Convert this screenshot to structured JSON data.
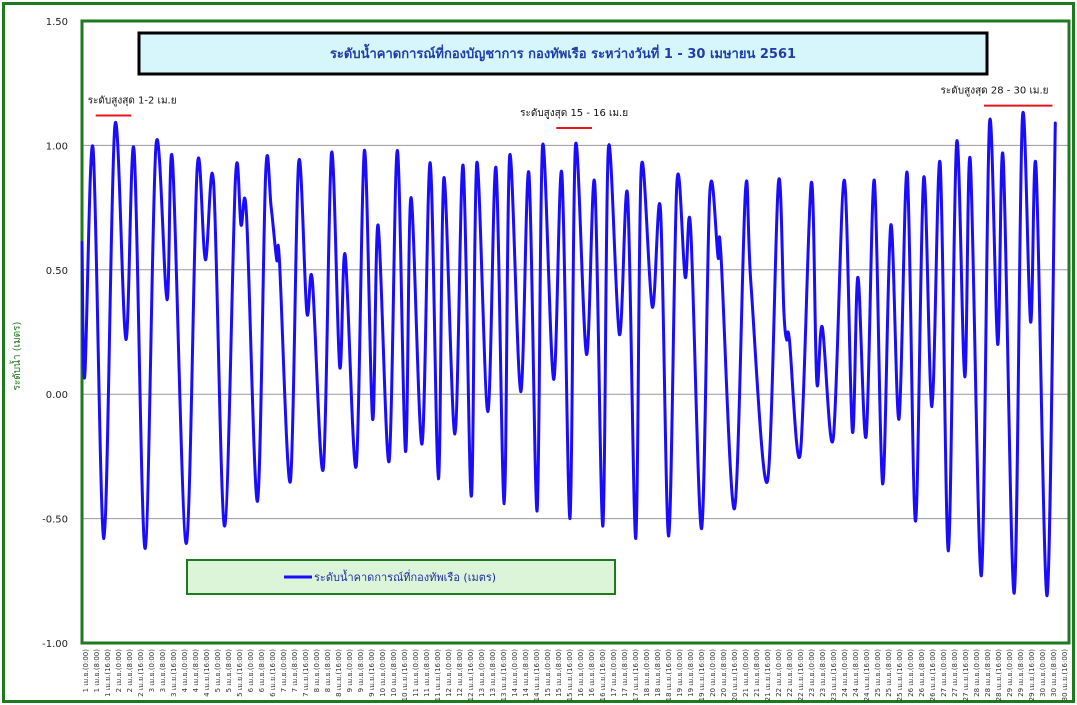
{
  "chart_data": {
    "type": "line",
    "title": "ระดับน้ำคาดการณ์ที่กองบัญชาการ กองทัพเรือ  ระหว่างวันที่ 1 - 30 เมษายน 2561",
    "ylabel": "ระดับน้ำ (เมตร)",
    "ylim": [
      -1.0,
      1.5
    ],
    "yticks": [
      "1.50",
      "1.00",
      "0.50",
      "0.00",
      "-0.50",
      "-1.00"
    ],
    "grid": true,
    "legend": {
      "label": "ระดับน้ำคาดการณ์ที่กองทัพเรือ (เมตร)",
      "position": "bottom-left"
    },
    "x_tick_labels": [
      "1 เม.ย.(0:00)",
      "1 เม.ย.(8:00)",
      "1 เม.ย.(16:00)",
      "2 เม.ย.(0:00)",
      "2 เม.ย.(8:00)",
      "2 เม.ย.(16:00)",
      "3 เม.ย.(0:00)",
      "3 เม.ย.(8:00)",
      "3 เม.ย.(16:00)",
      "4 เม.ย.(0:00)",
      "4 เม.ย.(8:00)",
      "4 เม.ย.(16:00)",
      "5 เม.ย.(0:00)",
      "5 เม.ย.(8:00)",
      "5 เม.ย.(16:00)",
      "6 เม.ย.(0:00)",
      "6 เม.ย.(8:00)",
      "6 เม.ย.(16:00)",
      "7 เม.ย.(0:00)",
      "7 เม.ย.(8:00)",
      "7 เม.ย.(16:00)",
      "8 เม.ย.(0:00)",
      "8 เม.ย.(8:00)",
      "8 เม.ย.(16:00)",
      "9 เม.ย.(0:00)",
      "9 เม.ย.(8:00)",
      "9 เม.ย.(16:00)",
      "10 เม.ย.(0:00)",
      "10 เม.ย.(8:00)",
      "10 เม.ย.(16:00)",
      "11 เม.ย.(0:00)",
      "11 เม.ย.(8:00)",
      "11 เม.ย.(16:00)",
      "12 เม.ย.(0:00)",
      "12 เม.ย.(8:00)",
      "12 เม.ย.(16:00)",
      "13 เม.ย.(0:00)",
      "13 เม.ย.(8:00)",
      "13 เม.ย.(16:00)",
      "14 เม.ย.(0:00)",
      "14 เม.ย.(8:00)",
      "14 เม.ย.(16:00)",
      "15 เม.ย.(0:00)",
      "15 เม.ย.(8:00)",
      "15 เม.ย.(16:00)",
      "16 เม.ย.(0:00)",
      "16 เม.ย.(8:00)",
      "16 เม.ย.(16:00)",
      "17 เม.ย.(0:00)",
      "17 เม.ย.(8:00)",
      "17 เม.ย.(16:00)",
      "18 เม.ย.(0:00)",
      "18 เม.ย.(8:00)",
      "18 เม.ย.(16:00)",
      "19 เม.ย.(0:00)",
      "19 เม.ย.(8:00)",
      "19 เม.ย.(16:00)",
      "20 เม.ย.(0:00)",
      "20 เม.ย.(8:00)",
      "20 เม.ย.(16:00)",
      "21 เม.ย.(0:00)",
      "21 เม.ย.(8:00)",
      "21 เม.ย.(16:00)",
      "22 เม.ย.(0:00)",
      "22 เม.ย.(8:00)",
      "22 เม.ย.(16:00)",
      "23 เม.ย.(0:00)",
      "23 เม.ย.(8:00)",
      "23 เม.ย.(16:00)",
      "24 เม.ย.(0:00)",
      "24 เม.ย.(8:00)",
      "24 เม.ย.(16:00)",
      "25 เม.ย.(0:00)",
      "25 เม.ย.(8:00)",
      "25 เม.ย.(16:00)",
      "26 เม.ย.(0:00)",
      "26 เม.ย.(8:00)",
      "26 เม.ย.(16:00)",
      "27 เม.ย.(0:00)",
      "27 เม.ย.(8:00)",
      "27 เม.ย.(16:00)",
      "28 เม.ย.(0:00)",
      "28 เม.ย.(8:00)",
      "28 เม.ย.(16:00)",
      "29 เม.ย.(0:00)",
      "29 เม.ย.(8:00)",
      "29 เม.ย.(16:00)",
      "30 เม.ย.(0:00)",
      "30 เม.ย.(8:00)",
      "30 เม.ย.(16:00)"
    ],
    "annotations": [
      {
        "label": "ระดับสูงสุด 1-2 เม.ย",
        "day_start": 1,
        "day_end": 2,
        "level": 1.12
      },
      {
        "label": "ระดับสูงสุด 15 - 16 เม.ย",
        "day_start": 15,
        "day_end": 16,
        "level": 1.07
      },
      {
        "label": "ระดับสูงสุด 28 - 30 เม.ย",
        "day_start": 28,
        "day_end": 30,
        "level": 1.16
      }
    ],
    "series": [
      {
        "name": "ระดับน้ำคาดการณ์ที่กองทัพเรือ (เมตร)",
        "color": "#1a0dff",
        "time_unit": "hours from 1 เม.ย.(0:00)",
        "points": [
          [
            0,
            0.61
          ],
          [
            1,
            0.07
          ],
          [
            4,
            0.99
          ],
          [
            8,
            -0.58
          ],
          [
            12,
            1.08
          ],
          [
            16,
            0.22
          ],
          [
            19,
            0.98
          ],
          [
            23,
            -0.62
          ],
          [
            27,
            1.0
          ],
          [
            31,
            0.38
          ],
          [
            33,
            0.94
          ],
          [
            38,
            -0.6
          ],
          [
            42,
            0.91
          ],
          [
            45,
            0.54
          ],
          [
            48,
            0.85
          ],
          [
            52,
            -0.53
          ],
          [
            56,
            0.87
          ],
          [
            58,
            0.68
          ],
          [
            60,
            0.72
          ],
          [
            64,
            -0.43
          ],
          [
            67,
            0.89
          ],
          [
            69,
            0.75
          ],
          [
            71,
            0.54
          ],
          [
            72,
            0.54
          ],
          [
            76,
            -0.35
          ],
          [
            79,
            0.93
          ],
          [
            82,
            0.33
          ],
          [
            84,
            0.46
          ],
          [
            88,
            -0.3
          ],
          [
            91,
            0.97
          ],
          [
            94,
            0.11
          ],
          [
            96,
            0.56
          ],
          [
            100,
            -0.29
          ],
          [
            103,
            0.98
          ],
          [
            106,
            -0.1
          ],
          [
            108,
            0.68
          ],
          [
            112,
            -0.27
          ],
          [
            115,
            0.98
          ],
          [
            118,
            -0.23
          ],
          [
            120,
            0.79
          ],
          [
            124,
            -0.2
          ],
          [
            127,
            0.93
          ],
          [
            130,
            -0.34
          ],
          [
            132,
            0.87
          ],
          [
            136,
            -0.16
          ],
          [
            139,
            0.92
          ],
          [
            142,
            -0.41
          ],
          [
            144,
            0.93
          ],
          [
            148,
            -0.07
          ],
          [
            151,
            0.91
          ],
          [
            154,
            -0.44
          ],
          [
            156,
            0.96
          ],
          [
            160,
            0.01
          ],
          [
            163,
            0.89
          ],
          [
            166,
            -0.47
          ],
          [
            168,
            1.0
          ],
          [
            172,
            0.06
          ],
          [
            175,
            0.89
          ],
          [
            178,
            -0.5
          ],
          [
            180,
            1.0
          ],
          [
            184,
            0.16
          ],
          [
            187,
            0.85
          ],
          [
            190,
            -0.53
          ],
          [
            192,
            0.99
          ],
          [
            196,
            0.24
          ],
          [
            199,
            0.8
          ],
          [
            202,
            -0.58
          ],
          [
            204,
            0.91
          ],
          [
            208,
            0.35
          ],
          [
            211,
            0.74
          ],
          [
            214,
            -0.57
          ],
          [
            217,
            0.85
          ],
          [
            220,
            0.47
          ],
          [
            222,
            0.67
          ],
          [
            226,
            -0.54
          ],
          [
            229,
            0.81
          ],
          [
            232,
            0.55
          ],
          [
            233,
            0.57
          ],
          [
            238,
            -0.46
          ],
          [
            242,
            0.82
          ],
          [
            244,
            0.44
          ],
          [
            250,
            -0.35
          ],
          [
            254,
            0.85
          ],
          [
            256,
            0.33
          ],
          [
            257,
            0.22
          ],
          [
            258,
            0.22
          ],
          [
            262,
            -0.24
          ],
          [
            266,
            0.85
          ],
          [
            268,
            0.05
          ],
          [
            270,
            0.27
          ],
          [
            274,
            -0.18
          ],
          [
            278,
            0.86
          ],
          [
            281,
            -0.15
          ],
          [
            283,
            0.47
          ],
          [
            286,
            -0.17
          ],
          [
            289,
            0.86
          ],
          [
            292,
            -0.36
          ],
          [
            295,
            0.68
          ],
          [
            298,
            -0.1
          ],
          [
            301,
            0.89
          ],
          [
            304,
            -0.51
          ],
          [
            307,
            0.87
          ],
          [
            310,
            -0.05
          ],
          [
            313,
            0.93
          ],
          [
            316,
            -0.63
          ],
          [
            319,
            1.01
          ],
          [
            322,
            0.07
          ],
          [
            324,
            0.94
          ],
          [
            328,
            -0.73
          ],
          [
            331,
            1.09
          ],
          [
            334,
            0.2
          ],
          [
            336,
            0.95
          ],
          [
            340,
            -0.8
          ],
          [
            343,
            1.11
          ],
          [
            346,
            0.29
          ],
          [
            348,
            0.91
          ],
          [
            352,
            -0.81
          ],
          [
            355,
            1.09
          ]
        ]
      }
    ]
  }
}
